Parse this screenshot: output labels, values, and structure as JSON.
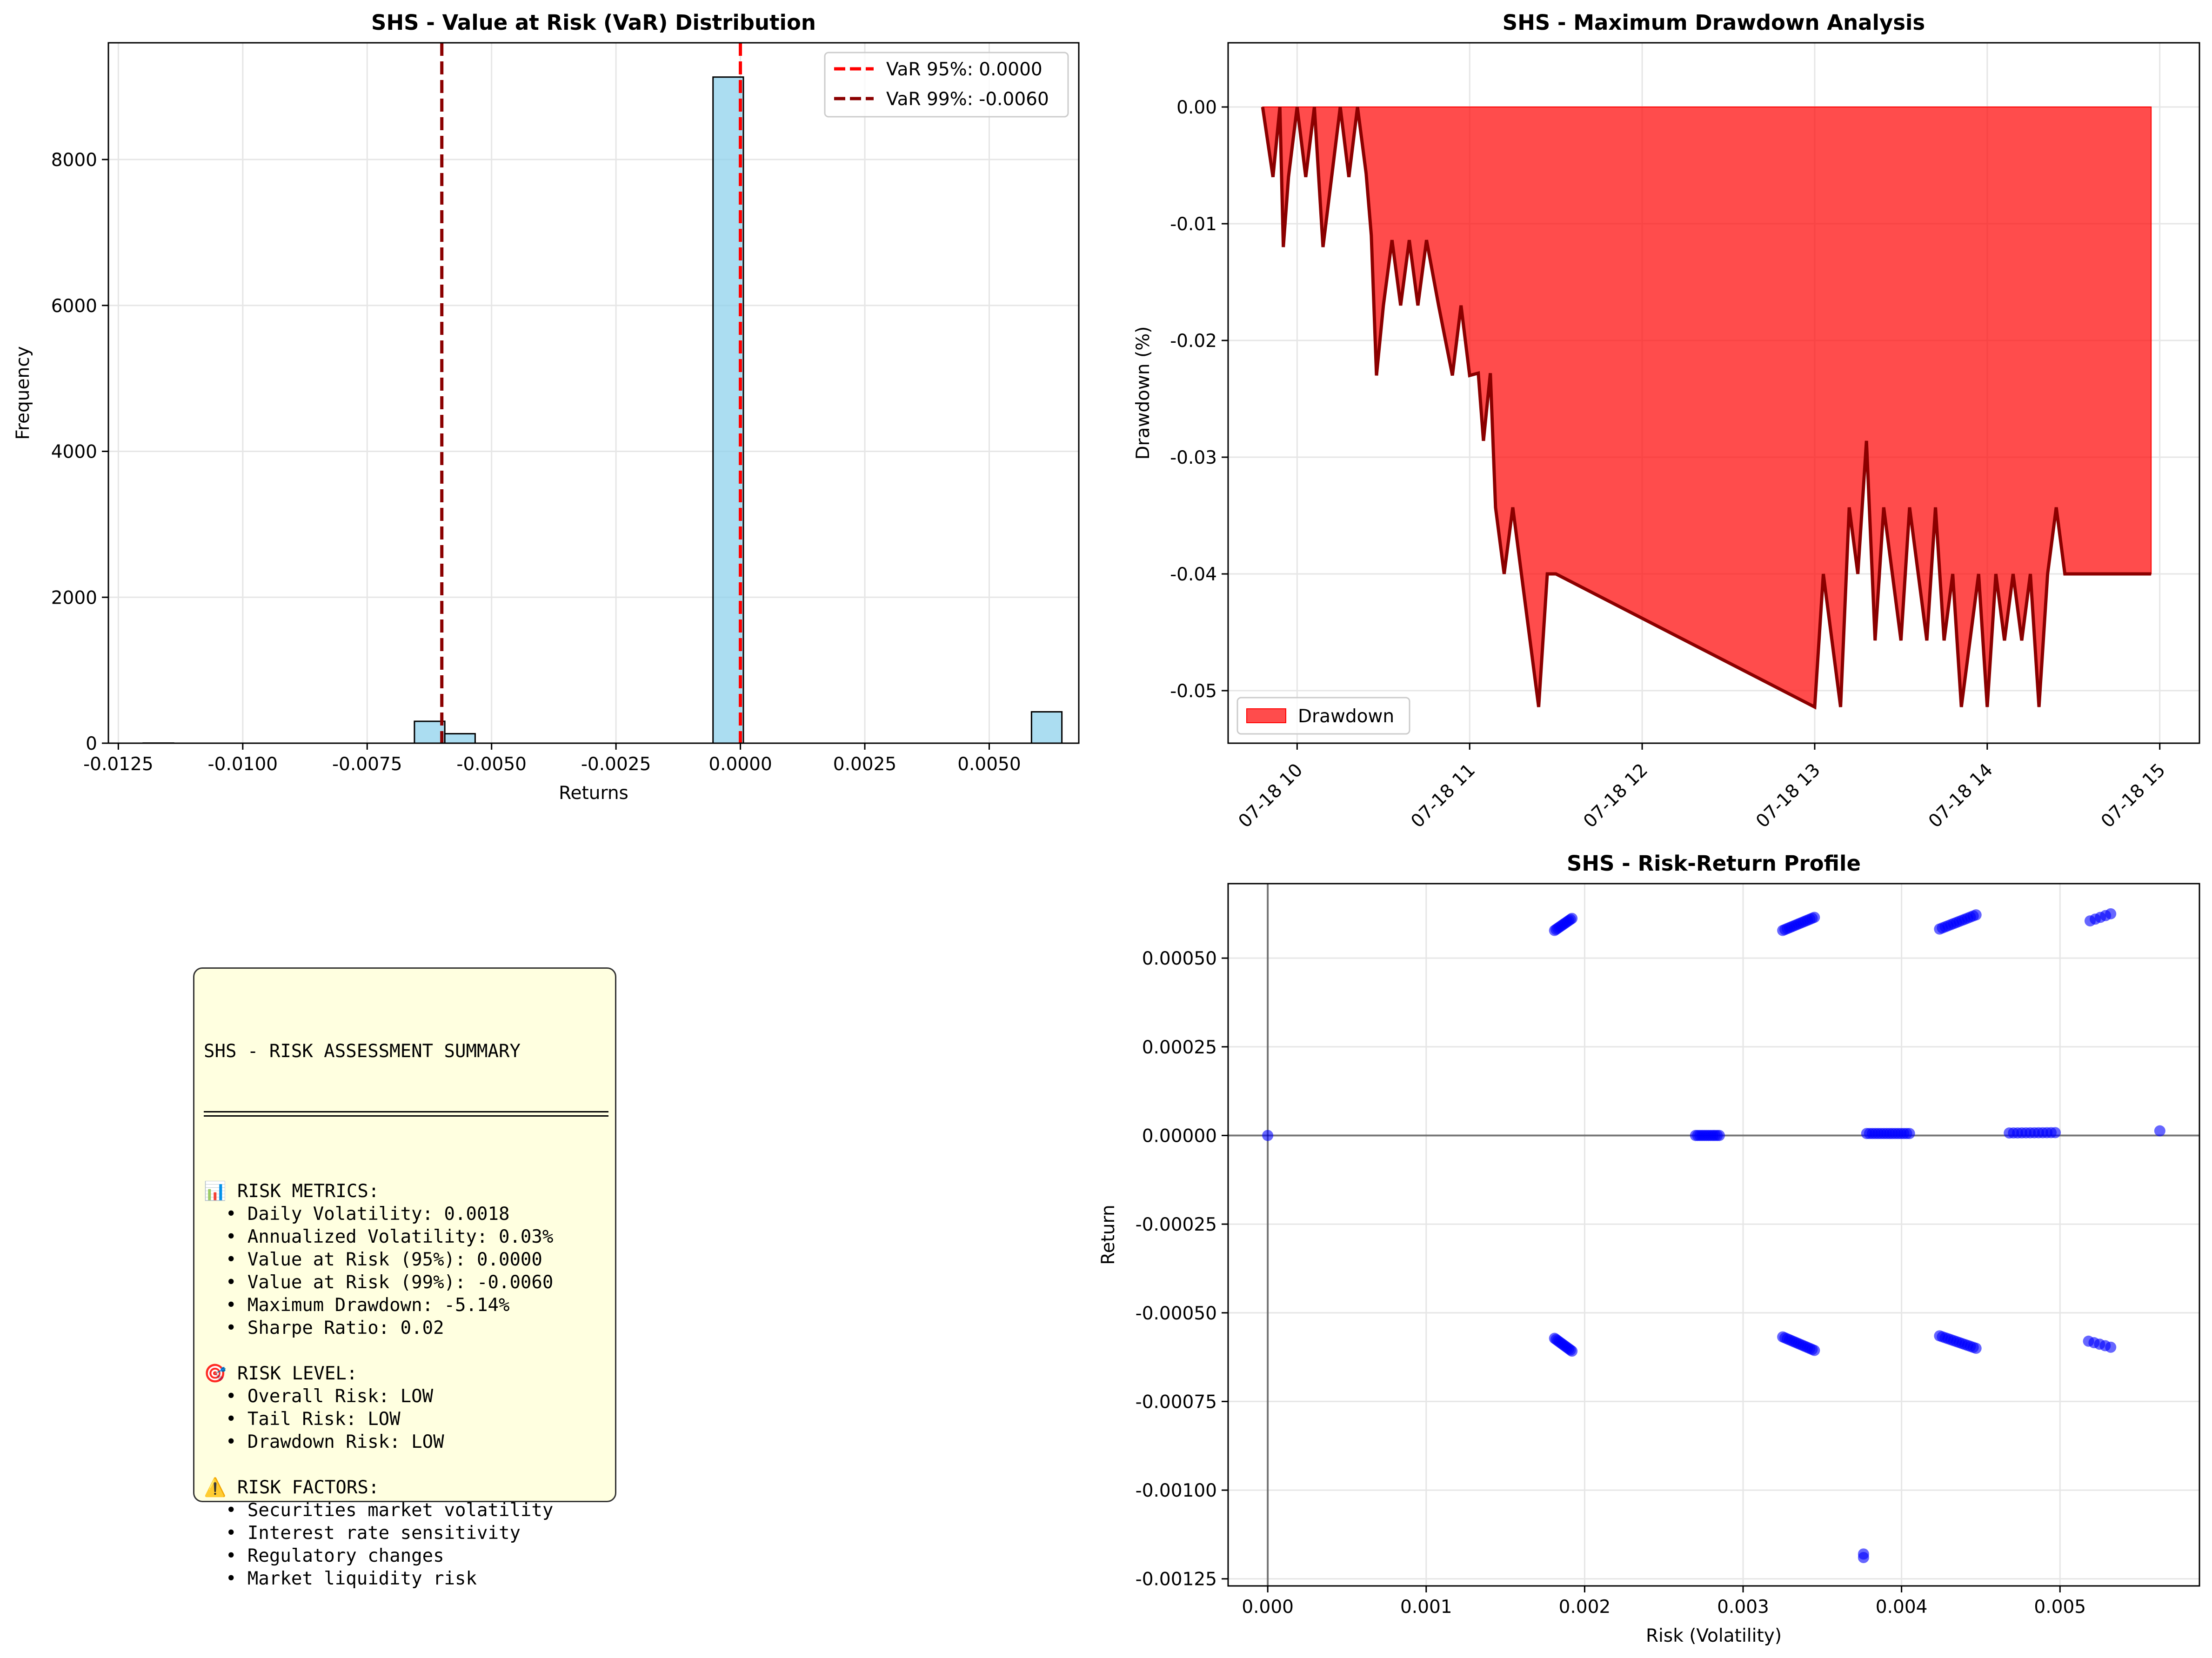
{
  "charts": [
    {
      "id": "var",
      "title": "SHS - Value at Risk (VaR) Distribution",
      "xlabel": "Returns",
      "ylabel": "Frequency",
      "xlim": [
        -0.0127,
        0.0068
      ],
      "ylim": [
        0,
        9600
      ],
      "xticks": [
        -0.0125,
        -0.01,
        -0.0075,
        -0.005,
        -0.0025,
        0.0,
        0.0025,
        0.005
      ],
      "xtick_labels": [
        "-0.0125",
        "-0.0100",
        "-0.0075",
        "-0.0050",
        "-0.0025",
        "0.0000",
        "0.0025",
        "0.0050"
      ],
      "yticks": [
        0,
        2000,
        4000,
        6000,
        8000
      ],
      "ytick_labels": [
        "0",
        "2000",
        "4000",
        "6000",
        "8000"
      ]
    },
    {
      "id": "drawdown",
      "title": "SHS - Maximum Drawdown Analysis",
      "ylabel": "Drawdown (%)",
      "xticks": [
        10,
        11,
        12,
        13,
        14,
        15
      ],
      "xtick_labels": [
        "07-18 10",
        "07-18 11",
        "07-18 12",
        "07-18 13",
        "07-18 14",
        "07-18 15"
      ],
      "yticks": [
        0,
        -0.01,
        -0.02,
        -0.03,
        -0.04,
        -0.05
      ],
      "ytick_labels": [
        "0.00",
        "-0.01",
        "-0.02",
        "-0.03",
        "-0.04",
        "-0.05"
      ]
    },
    {
      "id": "riskreturn",
      "title": "SHS - Risk-Return Profile",
      "xlabel": "Risk (Volatility)",
      "ylabel": "Return",
      "xticks": [
        0,
        0.001,
        0.002,
        0.003,
        0.004,
        0.005
      ],
      "xtick_labels": [
        "0.000",
        "0.001",
        "0.002",
        "0.003",
        "0.004",
        "0.005"
      ],
      "yticks": [
        0.0005,
        0.00025,
        0,
        -0.00025,
        -0.0005,
        -0.00075,
        -0.001,
        -0.00125
      ],
      "ytick_labels": [
        "0.00050",
        "0.00025",
        "0.00000",
        "-0.00025",
        "-0.00050",
        "-0.00075",
        "-0.00100",
        "-0.00125"
      ]
    }
  ],
  "chart_data": [
    {
      "type": "bar",
      "title": "SHS - Value at Risk (VaR) Distribution",
      "xlabel": "Returns",
      "ylabel": "Frequency",
      "xlim": [
        -0.0127,
        0.0068
      ],
      "ylim": [
        0,
        9600
      ],
      "bin_width": 0.00061,
      "bins": [
        {
          "x0": -0.012,
          "count": 2
        },
        {
          "x0": -0.00655,
          "count": 300
        },
        {
          "x0": -0.00594,
          "count": 130
        },
        {
          "x0": -0.00055,
          "count": 9130
        },
        {
          "x0": 0.00585,
          "count": 430
        }
      ],
      "reference_lines": [
        {
          "name": "VaR 95%: 0.0000",
          "x": 0.0,
          "color": "#ff0000"
        },
        {
          "name": "VaR 99%: -0.0060",
          "x": -0.006,
          "color": "#8b0000"
        }
      ],
      "legend": "top-right",
      "grid": true,
      "colors": {
        "bar": "#87ceeb",
        "edge": "#000000"
      }
    },
    {
      "type": "area",
      "title": "SHS - Maximum Drawdown Analysis",
      "ylabel": "Drawdown (%)",
      "xlim": [
        9.6,
        15.23
      ],
      "ylim": [
        -0.0545,
        0.0055
      ],
      "series": [
        {
          "name": "Drawdown",
          "x": [
            9.8,
            9.86,
            9.9,
            9.92,
            9.95,
            10.0,
            10.05,
            10.1,
            10.15,
            10.2,
            10.25,
            10.3,
            10.35,
            10.4,
            10.43,
            10.46,
            10.5,
            10.55,
            10.6,
            10.65,
            10.7,
            10.75,
            10.82,
            10.9,
            10.95,
            11.0,
            11.05,
            11.08,
            11.12,
            11.15,
            11.2,
            11.25,
            11.3,
            11.35,
            11.4,
            11.45,
            11.5,
            13.0,
            13.05,
            13.1,
            13.15,
            13.2,
            13.25,
            13.3,
            13.35,
            13.4,
            13.45,
            13.5,
            13.55,
            13.6,
            13.65,
            13.7,
            13.75,
            13.8,
            13.85,
            13.9,
            13.95,
            14.0,
            14.05,
            14.1,
            14.15,
            14.2,
            14.25,
            14.3,
            14.35,
            14.4,
            14.45,
            14.5,
            14.95
          ],
          "values": [
            0.0,
            -0.006,
            0.0,
            -0.012,
            -0.006,
            0.0,
            -0.006,
            0.0,
            -0.012,
            -0.006,
            0.0,
            -0.006,
            0.0,
            -0.0057,
            -0.011,
            -0.023,
            -0.017,
            -0.0114,
            -0.017,
            -0.0114,
            -0.017,
            -0.0114,
            -0.017,
            -0.023,
            -0.017,
            -0.023,
            -0.0228,
            -0.0286,
            -0.0228,
            -0.0343,
            -0.04,
            -0.0343,
            -0.04,
            -0.0457,
            -0.0514,
            -0.04,
            -0.04,
            -0.0514,
            -0.04,
            -0.0457,
            -0.0514,
            -0.0343,
            -0.04,
            -0.0286,
            -0.0457,
            -0.0343,
            -0.04,
            -0.0457,
            -0.0343,
            -0.04,
            -0.0457,
            -0.0343,
            -0.0457,
            -0.04,
            -0.0514,
            -0.0457,
            -0.04,
            -0.0514,
            -0.04,
            -0.0457,
            -0.04,
            -0.0457,
            -0.04,
            -0.0514,
            -0.04,
            -0.0343,
            -0.04,
            -0.04,
            -0.04
          ]
        }
      ],
      "legend": "bottom-left",
      "grid": true,
      "colors": {
        "fill": "#ff0000",
        "line": "#8b0000"
      }
    },
    {
      "type": "scatter",
      "title": "SHS - Risk-Return Profile",
      "xlabel": "Risk (Volatility)",
      "ylabel": "Return",
      "xlim": [
        -0.00025,
        0.00588
      ],
      "ylim": [
        -0.00127,
        0.00071
      ],
      "reference_lines": [
        {
          "axis": "x",
          "value": 0
        },
        {
          "axis": "y",
          "value": 0
        }
      ],
      "clusters": [
        {
          "x0": 0.00181,
          "x1": 0.00192,
          "y0": 0.000578,
          "y1": 0.000612,
          "n": 12
        },
        {
          "x0": 0.00325,
          "x1": 0.00345,
          "y0": 0.000578,
          "y1": 0.000615,
          "n": 15
        },
        {
          "x0": 0.00424,
          "x1": 0.00447,
          "y0": 0.000582,
          "y1": 0.000622,
          "n": 14
        },
        {
          "x0": 0.00519,
          "x1": 0.00532,
          "y0": 0.000605,
          "y1": 0.000625,
          "n": 5
        },
        {
          "x0": 0.00181,
          "x1": 0.00192,
          "y0": -0.000572,
          "y1": -0.000608,
          "n": 12
        },
        {
          "x0": 0.00325,
          "x1": 0.00345,
          "y0": -0.000568,
          "y1": -0.000606,
          "n": 15
        },
        {
          "x0": 0.00424,
          "x1": 0.00447,
          "y0": -0.000565,
          "y1": -0.0006,
          "n": 14
        },
        {
          "x0": 0.00518,
          "x1": 0.00532,
          "y0": -0.00058,
          "y1": -0.000597,
          "n": 5
        },
        {
          "x0": 0.0027,
          "x1": 0.00285,
          "y0": 0.0,
          "y1": 0.0,
          "n": 12
        },
        {
          "x0": 0.00378,
          "x1": 0.00405,
          "y0": 5.5e-06,
          "y1": 5.5e-06,
          "n": 16
        },
        {
          "x0": 0.00468,
          "x1": 0.00497,
          "y0": 7e-06,
          "y1": 8e-06,
          "n": 12
        },
        {
          "x0": 0.00563,
          "x1": 0.00563,
          "y0": 1.3e-05,
          "y1": 1.3e-05,
          "n": 1
        },
        {
          "x0": 0.0,
          "x1": 0.0,
          "y0": 0.0,
          "y1": 0.0,
          "n": 1
        },
        {
          "x0": 0.00376,
          "x1": 0.00376,
          "y0": -0.00118,
          "y1": -0.00119,
          "n": 2
        }
      ],
      "grid": true,
      "colors": {
        "point": "#0000ff"
      }
    }
  ],
  "summary": {
    "title": "SHS - RISK ASSESSMENT SUMMARY",
    "lines": [
      "📊 RISK METRICS:",
      "  • Daily Volatility: 0.0018",
      "  • Annualized Volatility: 0.03%",
      "  • Value at Risk (95%): 0.0000",
      "  • Value at Risk (99%): -0.0060",
      "  • Maximum Drawdown: -5.14%",
      "  • Sharpe Ratio: 0.02",
      "",
      "🎯 RISK LEVEL:",
      "  • Overall Risk: LOW",
      "  • Tail Risk: LOW",
      "  • Drawdown Risk: LOW",
      "",
      "⚠️ RISK FACTORS:",
      "  • Securities market volatility",
      "  • Interest rate sensitivity",
      "  • Regulatory changes",
      "  • Market liquidity risk"
    ]
  }
}
